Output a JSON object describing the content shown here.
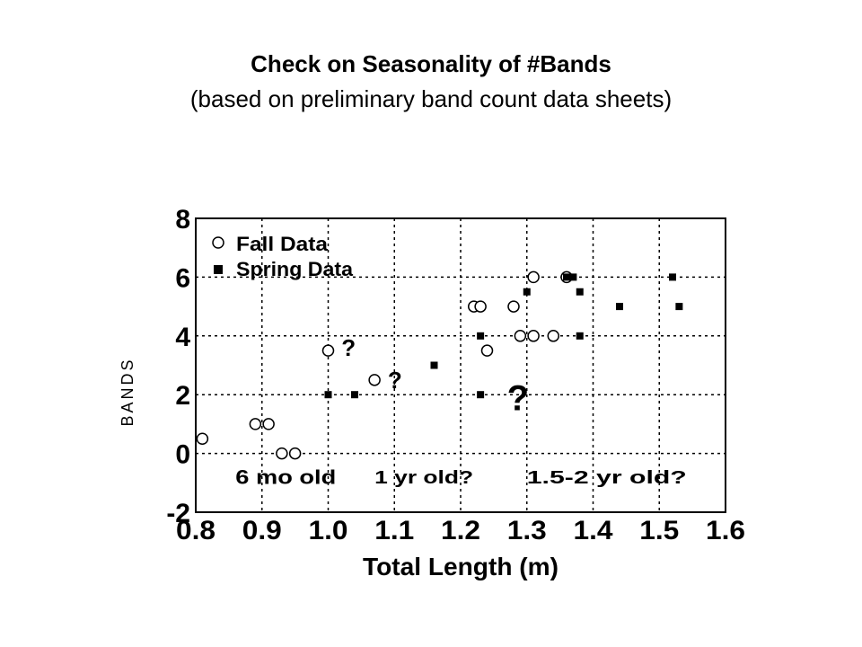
{
  "chart_data": {
    "type": "scatter",
    "title": "Check on Seasonality of  #Bands",
    "subtitle": "(based on preliminary band count data sheets)",
    "xlabel": "Total Length (m)",
    "ylabel": "BANDS",
    "xlim": [
      0.8,
      1.6
    ],
    "ylim": [
      -2,
      8
    ],
    "x_ticks": [
      "0.8",
      "0.9",
      "1.0",
      "1.1",
      "1.2",
      "1.3",
      "1.4",
      "1.5",
      "1.6"
    ],
    "y_ticks": [
      "-2",
      "0",
      "2",
      "4",
      "6",
      "8"
    ],
    "grid": true,
    "legend_placement": "top-left",
    "series": [
      {
        "name": "Fall Data",
        "marker": "open-circle",
        "points": [
          [
            0.81,
            0.5
          ],
          [
            0.89,
            1.0
          ],
          [
            0.91,
            1.0
          ],
          [
            0.93,
            0.0
          ],
          [
            0.95,
            0.0
          ],
          [
            1.0,
            3.5
          ],
          [
            1.07,
            2.5
          ],
          [
            1.22,
            5.0
          ],
          [
            1.23,
            5.0
          ],
          [
            1.24,
            3.5
          ],
          [
            1.28,
            5.0
          ],
          [
            1.29,
            4.0
          ],
          [
            1.31,
            6.0
          ],
          [
            1.31,
            4.0
          ],
          [
            1.34,
            4.0
          ],
          [
            1.36,
            6.0
          ]
        ]
      },
      {
        "name": "Spring Data",
        "marker": "filled-square",
        "points": [
          [
            1.0,
            2.0
          ],
          [
            1.04,
            2.0
          ],
          [
            1.16,
            3.0
          ],
          [
            1.23,
            2.0
          ],
          [
            1.23,
            4.0
          ],
          [
            1.3,
            5.5
          ],
          [
            1.36,
            6.0
          ],
          [
            1.37,
            6.0
          ],
          [
            1.38,
            5.5
          ],
          [
            1.38,
            4.0
          ],
          [
            1.44,
            5.0
          ],
          [
            1.52,
            6.0
          ],
          [
            1.53,
            5.0
          ]
        ]
      }
    ],
    "annotations": [
      {
        "text": "?",
        "x": 1.02,
        "y": 3.6
      },
      {
        "text": "?",
        "x": 1.09,
        "y": 2.5
      },
      {
        "text": "?",
        "x": 1.27,
        "y": 1.9
      },
      {
        "text": "6 mo old",
        "x": 0.86,
        "y": -0.8
      },
      {
        "text": "1 yr old?",
        "x": 1.07,
        "y": -0.8
      },
      {
        "text": "1.5-2 yr old?",
        "x": 1.3,
        "y": -0.8
      }
    ]
  }
}
